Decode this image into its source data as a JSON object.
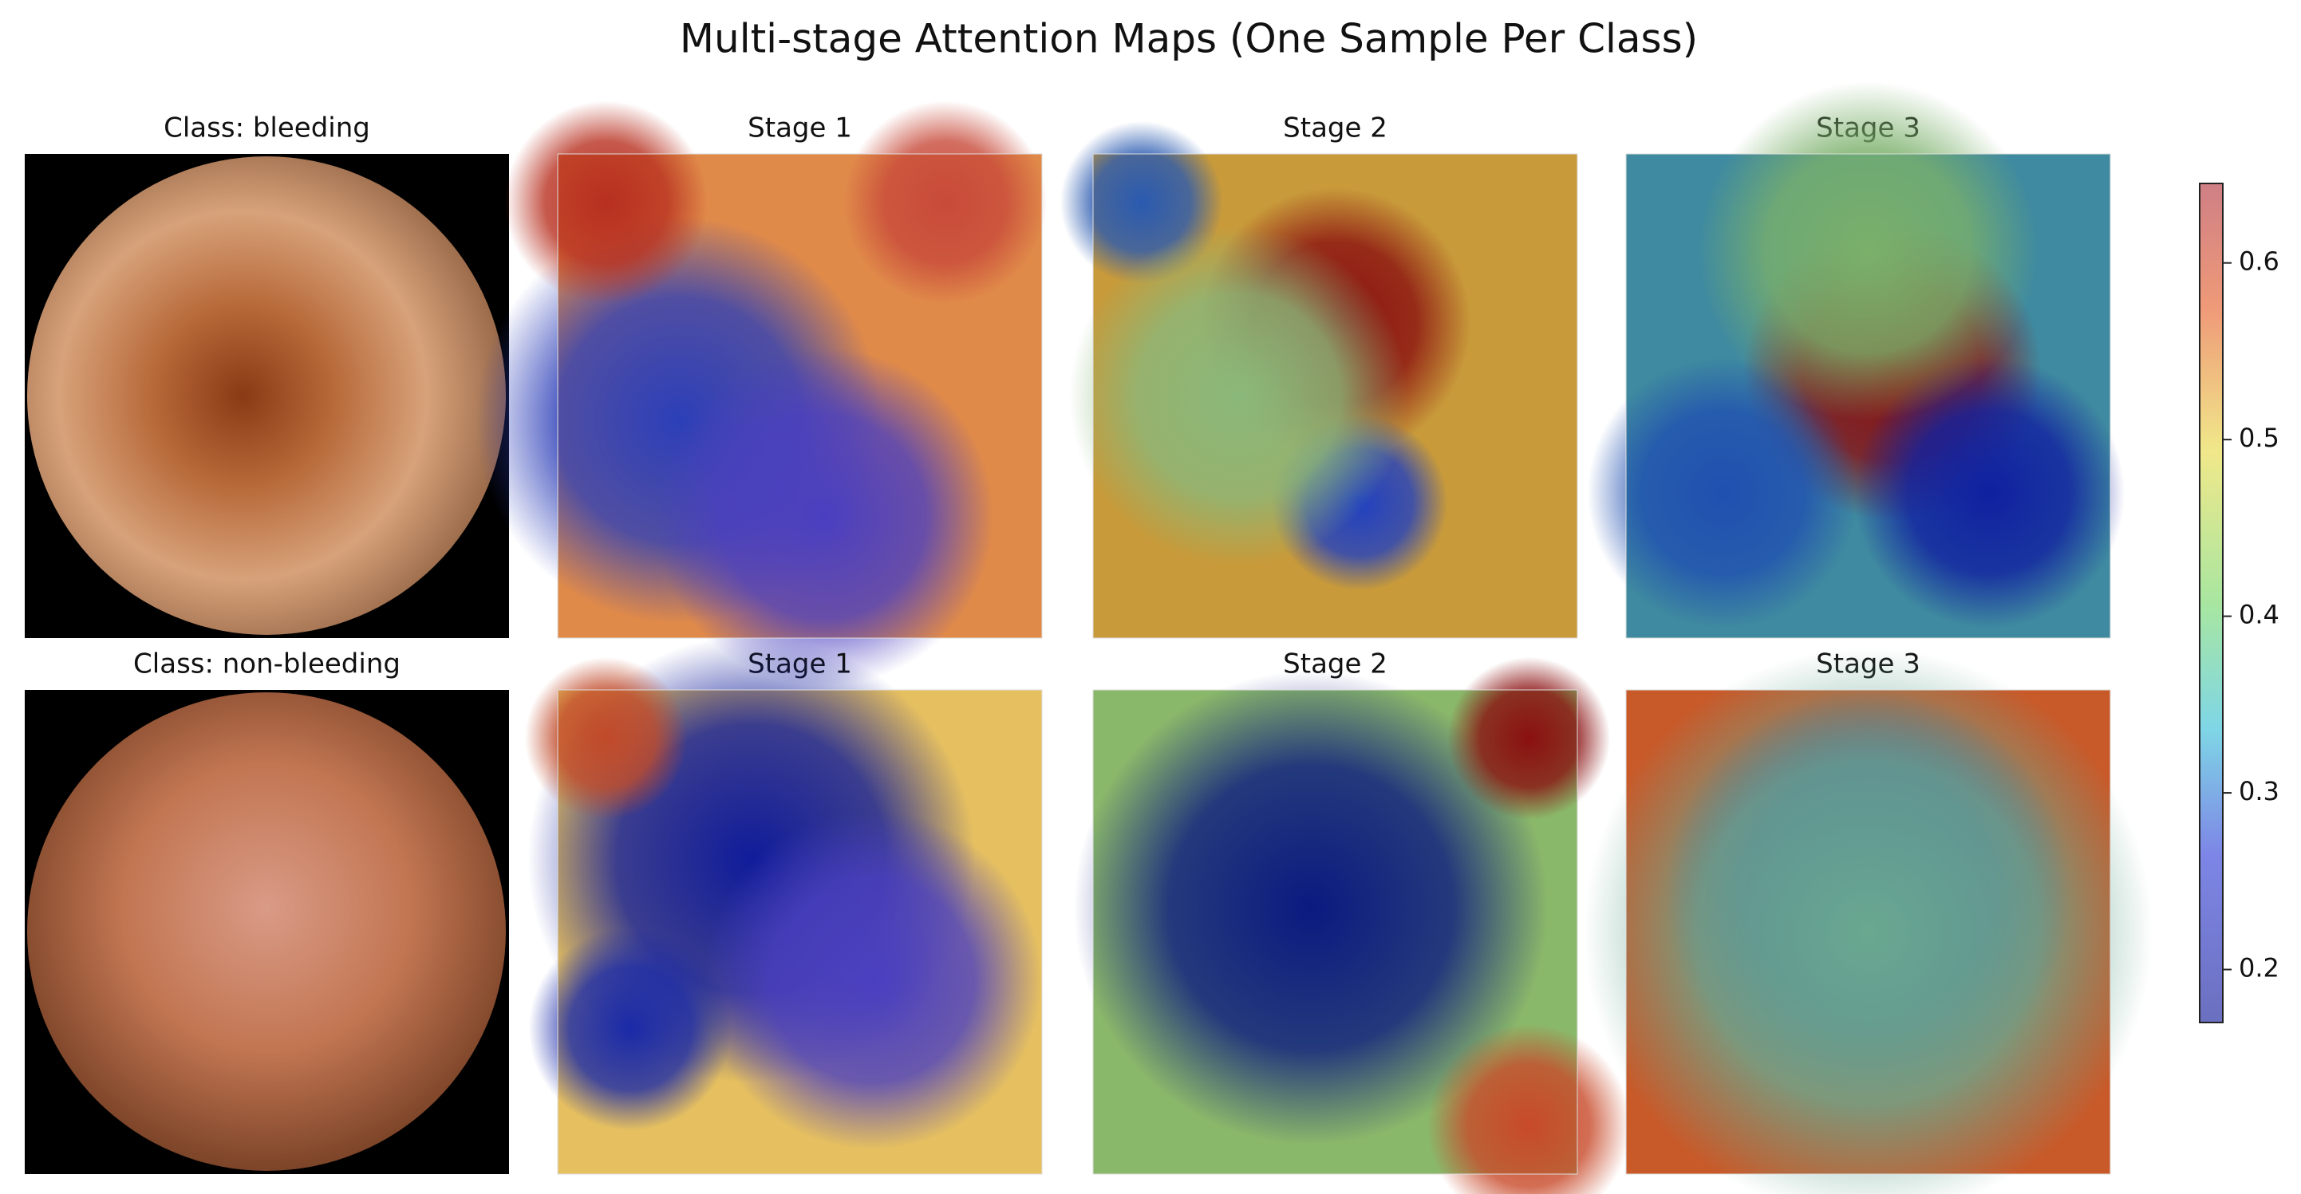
{
  "chart_data": {
    "type": "heatmap",
    "title": "Multi-stage Attention Maps (One Sample Per Class)",
    "panels": [
      {
        "title": "Class: bleeding"
      },
      {
        "title": "Stage 1"
      },
      {
        "title": "Stage 2"
      },
      {
        "title": "Stage 3"
      },
      {
        "title": "Class: non-bleeding"
      },
      {
        "title": "Stage 1"
      },
      {
        "title": "Stage 2"
      },
      {
        "title": "Stage 3"
      }
    ],
    "colorbar": {
      "ylim": [
        0.17,
        0.645
      ],
      "yticks": [
        0.2,
        0.3,
        0.4,
        0.5,
        0.6
      ]
    }
  }
}
